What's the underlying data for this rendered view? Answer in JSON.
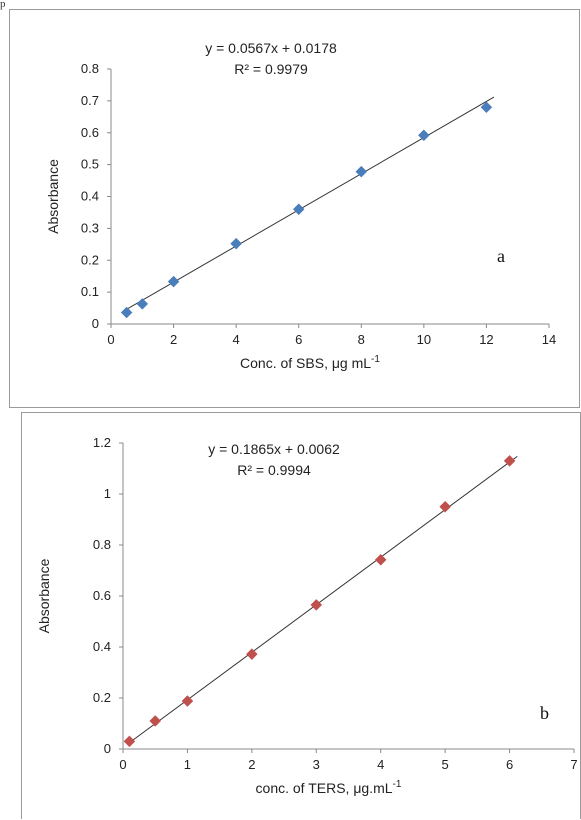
{
  "top_mark": "p",
  "chart_data": [
    {
      "type": "scatter",
      "panel_label": "a",
      "xlabel": "Conc. of SBS, μg mL",
      "xlabel_sup": "-1",
      "ylabel": "Absorbance",
      "xlim": [
        0,
        14
      ],
      "ylim": [
        0,
        0.8
      ],
      "xticks": [
        "0",
        "2",
        "4",
        "6",
        "8",
        "10",
        "12",
        "14"
      ],
      "yticks": [
        "0",
        "0.1",
        "0.2",
        "0.3",
        "0.4",
        "0.5",
        "0.6",
        "0.7",
        "0.8"
      ],
      "grid": false,
      "marker": "diamond",
      "color": "#4a7ebb",
      "equation": "y = 0.0567x + 0.0178",
      "r2": "R² = 0.9979",
      "trendline": {
        "slope": 0.0567,
        "intercept": 0.0178
      },
      "points": [
        {
          "x": 0.5,
          "y": 0.036
        },
        {
          "x": 1,
          "y": 0.063
        },
        {
          "x": 2,
          "y": 0.133
        },
        {
          "x": 4,
          "y": 0.252
        },
        {
          "x": 6,
          "y": 0.36
        },
        {
          "x": 8,
          "y": 0.478
        },
        {
          "x": 10,
          "y": 0.592
        },
        {
          "x": 12,
          "y": 0.68
        }
      ]
    },
    {
      "type": "scatter",
      "panel_label": "b",
      "xlabel": "conc. of TERS, μg.mL",
      "xlabel_sup": "-1",
      "ylabel": "Absorbance",
      "xlim": [
        0,
        7
      ],
      "ylim": [
        0,
        1.2
      ],
      "xticks": [
        "0",
        "1",
        "2",
        "3",
        "4",
        "5",
        "6",
        "7"
      ],
      "yticks": [
        "0",
        "0.2",
        "0.4",
        "0.6",
        "0.8",
        "1",
        "1.2"
      ],
      "grid": false,
      "marker": "diamond",
      "color": "#c0504d",
      "equation": "y = 0.1865x + 0.0062",
      "r2": "R² = 0.9994",
      "trendline": {
        "slope": 0.1865,
        "intercept": 0.0062
      },
      "points": [
        {
          "x": 0.1,
          "y": 0.03
        },
        {
          "x": 0.5,
          "y": 0.11
        },
        {
          "x": 1,
          "y": 0.188
        },
        {
          "x": 2,
          "y": 0.372
        },
        {
          "x": 3,
          "y": 0.565
        },
        {
          "x": 4,
          "y": 0.742
        },
        {
          "x": 5,
          "y": 0.95
        },
        {
          "x": 6,
          "y": 1.13
        }
      ]
    }
  ]
}
